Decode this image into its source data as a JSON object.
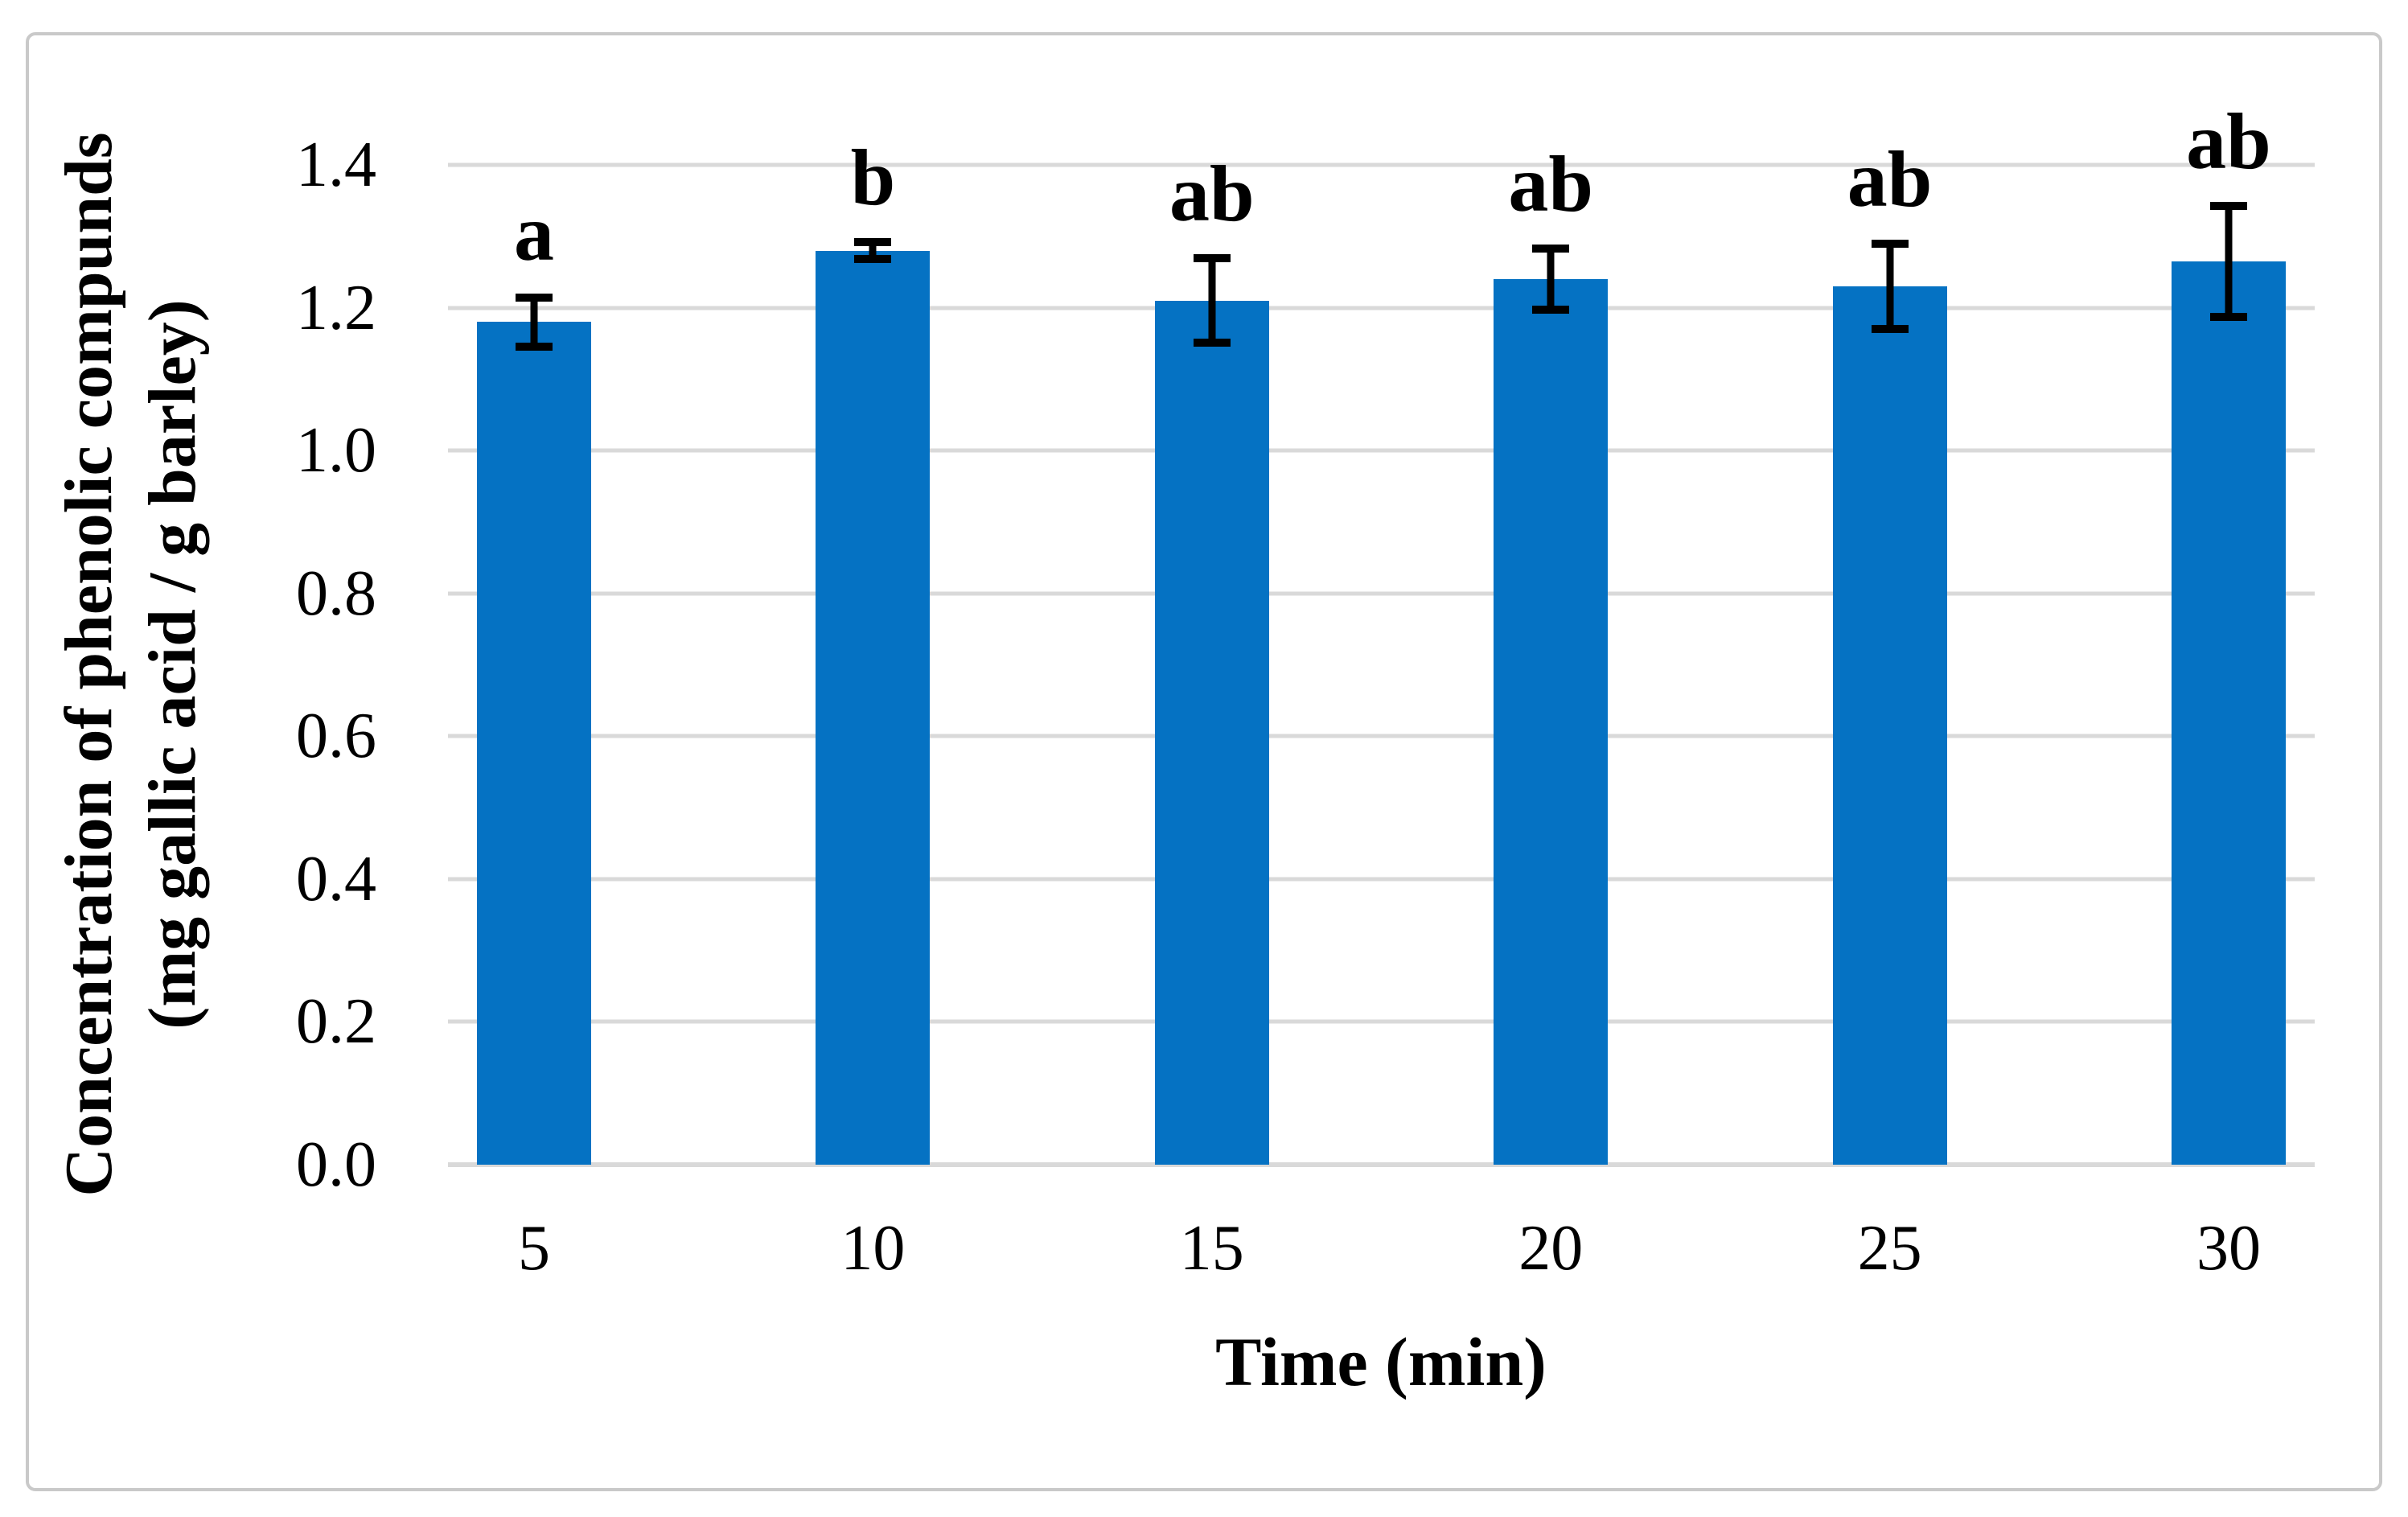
{
  "chart_data": {
    "type": "bar",
    "title": "",
    "xlabel": "Time (min)",
    "ylabel_line1": "Concentration of phenolic compunds",
    "ylabel_line2": "(mg gallic acid / g barley)",
    "categories": [
      "5",
      "10",
      "15",
      "20",
      "25",
      "30"
    ],
    "x_numeric": [
      5,
      10,
      15,
      20,
      25,
      30
    ],
    "values": [
      1.18,
      1.28,
      1.21,
      1.24,
      1.23,
      1.265
    ],
    "errors": [
      0.04,
      0.017,
      0.065,
      0.048,
      0.065,
      0.083
    ],
    "sig_letters": [
      "a",
      "b",
      "ab",
      "ab",
      "ab",
      "ab"
    ],
    "yticks": [
      0.0,
      0.2,
      0.4,
      0.6,
      0.8,
      1.0,
      1.2,
      1.4
    ],
    "ylim": [
      0,
      1.4
    ],
    "xlim": [
      3.73,
      31.27
    ],
    "grid": true,
    "legend": "none",
    "bar_color": "#0572c3",
    "gridline_color": "#d9d9d9",
    "errorbar_color": "#000000",
    "border_color": "#c9c9c9",
    "series": [
      {
        "name": "Concentration of phenolic compounds",
        "points": [
          {
            "x": 5,
            "value": 1.18,
            "error": 0.04,
            "letter": "a"
          },
          {
            "x": 10,
            "value": 1.28,
            "error": 0.017,
            "letter": "b"
          },
          {
            "x": 15,
            "value": 1.21,
            "error": 0.065,
            "letter": "ab"
          },
          {
            "x": 20,
            "value": 1.24,
            "error": 0.048,
            "letter": "ab"
          },
          {
            "x": 25,
            "value": 1.23,
            "error": 0.065,
            "letter": "ab"
          },
          {
            "x": 30,
            "value": 1.265,
            "error": 0.083,
            "letter": "ab"
          }
        ]
      }
    ]
  }
}
